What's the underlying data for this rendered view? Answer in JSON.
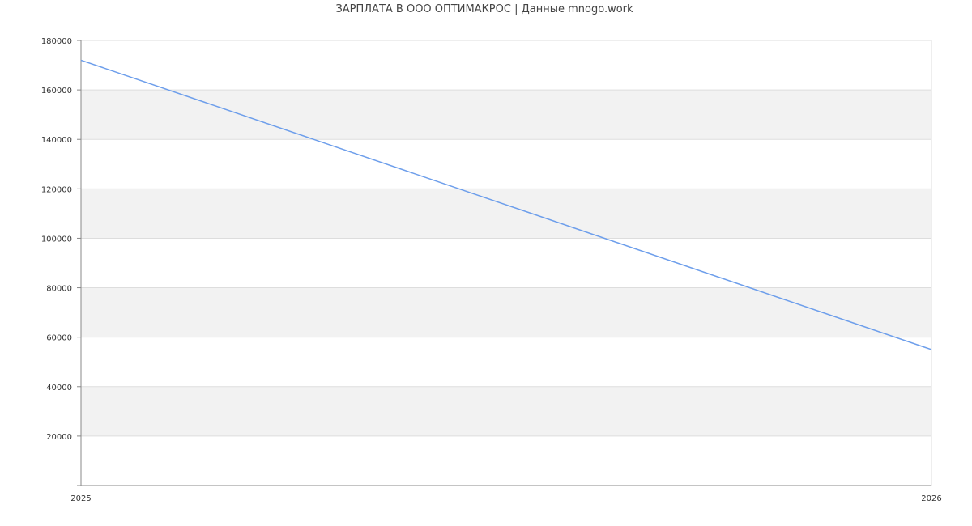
{
  "chart_data": {
    "type": "line",
    "title": "ЗАРПЛАТА В ООО ОПТИМАКРОС | Данные mnogo.work",
    "xlabel": "",
    "ylabel": "",
    "x_ticks": [
      "2025",
      "2026"
    ],
    "y_ticks": [
      20000,
      40000,
      60000,
      80000,
      100000,
      120000,
      140000,
      160000,
      180000
    ],
    "ylim": [
      0,
      180000
    ],
    "grid": true,
    "series": [
      {
        "x": [
          "2025",
          "2026"
        ],
        "values": [
          172000,
          55000
        ],
        "color": "#6d9eeb"
      }
    ],
    "colors": {
      "band": "#f2f2f2",
      "grid": "#dddddd",
      "axis": "#888888"
    }
  }
}
